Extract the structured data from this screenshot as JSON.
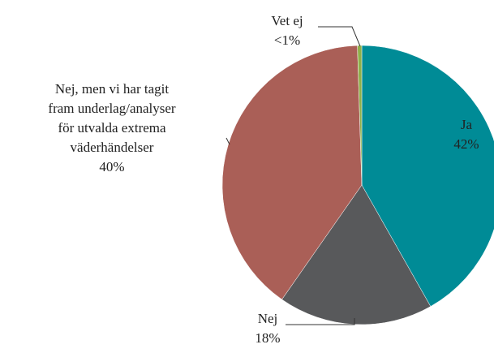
{
  "chart_data": {
    "type": "pie",
    "categories": [
      "Ja",
      "Nej",
      "Nej, men vi har tagit\nfram underlag/analyser\nför utvalda extrema\nväderhändelser",
      "Vet ej"
    ],
    "values": [
      42,
      18,
      40,
      0.5
    ],
    "value_labels": [
      "42%",
      "18%",
      "40%",
      "<1%"
    ],
    "colors": [
      "#008b96",
      "#58595b",
      "#aa5f57",
      "#8fb04a"
    ]
  }
}
